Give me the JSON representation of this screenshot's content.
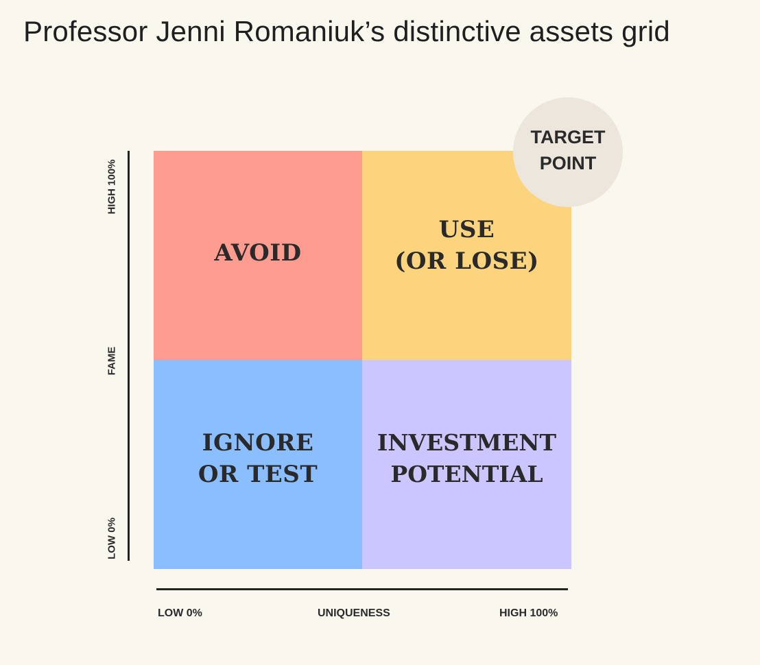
{
  "title": "Professor Jenni Romaniuk’s distinctive assets grid",
  "quadrants": {
    "top_left": {
      "label": "AVOID",
      "color": "#fe9c8f"
    },
    "top_right": {
      "label": "USE\n(OR LOSE)",
      "color": "#fdd47e"
    },
    "bottom_left": {
      "label": "IGNORE\nOR TEST",
      "color": "#8bbefe"
    },
    "bottom_right": {
      "label": "INVESTMENT\nPOTENTIAL",
      "color": "#cbc6fe"
    }
  },
  "target_point": {
    "label": "TARGET\nPOINT",
    "color": "#ece6dd"
  },
  "y_axis": {
    "high": "HIGH 100%",
    "name": "FAME",
    "low": "LOW 0%"
  },
  "x_axis": {
    "low": "LOW 0%",
    "name": "UNIQUENESS",
    "high": "HIGH 100%"
  }
}
